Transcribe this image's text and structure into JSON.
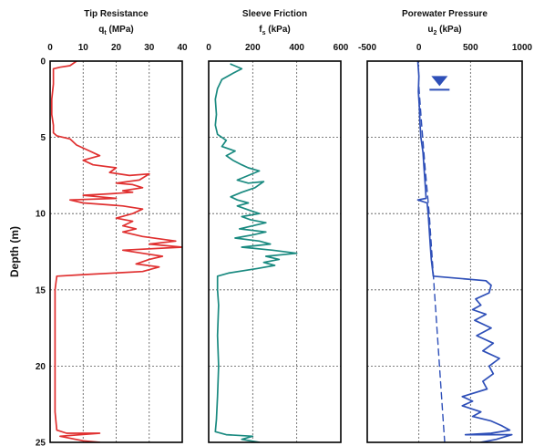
{
  "chart_data": {
    "type": "line",
    "y_axis": {
      "label": "Depth (m)",
      "range": [
        0,
        25
      ],
      "ticks": [
        0,
        5,
        10,
        15,
        20,
        25
      ],
      "inverted": true
    },
    "grid": true,
    "panels": [
      {
        "title": "Tip Resistance",
        "subtitle_main": "q",
        "subtitle_sub": "t",
        "subtitle_unit": " (MPa)",
        "xlim": [
          0,
          40
        ],
        "x_ticks": [
          0,
          10,
          20,
          30,
          40
        ],
        "color": "#e03030",
        "series": [
          {
            "points": [
              [
                8,
                0
              ],
              [
                6,
                0.3
              ],
              [
                3,
                0.4
              ],
              [
                1,
                0.5
              ],
              [
                1,
                1.5
              ],
              [
                0.5,
                2.5
              ],
              [
                0.5,
                3.5
              ],
              [
                1,
                4.2
              ],
              [
                1,
                4.7
              ],
              [
                2,
                4.9
              ],
              [
                6,
                5.1
              ],
              [
                8,
                5.5
              ],
              [
                12,
                5.9
              ],
              [
                15,
                6.2
              ],
              [
                10,
                6.5
              ],
              [
                13,
                6.8
              ],
              [
                20,
                7.0
              ],
              [
                18,
                7.3
              ],
              [
                24,
                7.5
              ],
              [
                30,
                7.4
              ],
              [
                27,
                7.8
              ],
              [
                20,
                8.0
              ],
              [
                25,
                8.1
              ],
              [
                28,
                8.3
              ],
              [
                22,
                8.5
              ],
              [
                25,
                8.6
              ],
              [
                18,
                8.7
              ],
              [
                10,
                8.8
              ],
              [
                15,
                8.9
              ],
              [
                20,
                9.0
              ],
              [
                6,
                9.1
              ],
              [
                10,
                9.3
              ],
              [
                22,
                9.5
              ],
              [
                28,
                9.7
              ],
              [
                25,
                10.0
              ],
              [
                20,
                10.3
              ],
              [
                25,
                10.5
              ],
              [
                22,
                10.8
              ],
              [
                26,
                11.0
              ],
              [
                22,
                11.2
              ],
              [
                28,
                11.5
              ],
              [
                38,
                11.8
              ],
              [
                30,
                12.0
              ],
              [
                40,
                12.2
              ],
              [
                22,
                12.4
              ],
              [
                28,
                12.6
              ],
              [
                34,
                12.8
              ],
              [
                30,
                13.0
              ],
              [
                26,
                13.3
              ],
              [
                33,
                13.5
              ],
              [
                28,
                13.8
              ],
              [
                10,
                14.0
              ],
              [
                2,
                14.1
              ],
              [
                1.5,
                15
              ],
              [
                1.5,
                17
              ],
              [
                1.5,
                19
              ],
              [
                1.5,
                21
              ],
              [
                1.5,
                23
              ],
              [
                2,
                24.2
              ],
              [
                5,
                24.4
              ],
              [
                15,
                24.4
              ],
              [
                3,
                24.6
              ],
              [
                10,
                24.9
              ],
              [
                15,
                25.0
              ]
            ]
          }
        ]
      },
      {
        "title": "Sleeve Friction",
        "subtitle_main": "f",
        "subtitle_sub": "s",
        "subtitle_unit": " (kPa)",
        "xlim": [
          0,
          600
        ],
        "x_ticks": [
          0,
          200,
          400,
          600
        ],
        "color": "#1a8a80",
        "series": [
          {
            "points": [
              [
                100,
                0.2
              ],
              [
                150,
                0.5
              ],
              [
                110,
                0.8
              ],
              [
                60,
                1.2
              ],
              [
                40,
                1.8
              ],
              [
                30,
                2.5
              ],
              [
                35,
                3.5
              ],
              [
                30,
                4.2
              ],
              [
                40,
                4.8
              ],
              [
                80,
                5.2
              ],
              [
                60,
                5.6
              ],
              [
                120,
                5.9
              ],
              [
                80,
                6.2
              ],
              [
                110,
                6.5
              ],
              [
                150,
                6.8
              ],
              [
                180,
                7.0
              ],
              [
                230,
                7.2
              ],
              [
                180,
                7.5
              ],
              [
                130,
                7.8
              ],
              [
                180,
                8.0
              ],
              [
                250,
                7.9
              ],
              [
                210,
                8.3
              ],
              [
                150,
                8.6
              ],
              [
                100,
                8.9
              ],
              [
                130,
                9.1
              ],
              [
                180,
                9.3
              ],
              [
                130,
                9.5
              ],
              [
                190,
                9.8
              ],
              [
                230,
                10.0
              ],
              [
                150,
                10.2
              ],
              [
                190,
                10.4
              ],
              [
                260,
                10.6
              ],
              [
                200,
                10.8
              ],
              [
                140,
                11.0
              ],
              [
                260,
                11.2
              ],
              [
                200,
                11.4
              ],
              [
                120,
                11.6
              ],
              [
                230,
                11.8
              ],
              [
                280,
                12.0
              ],
              [
                150,
                12.2
              ],
              [
                290,
                12.4
              ],
              [
                400,
                12.6
              ],
              [
                260,
                12.8
              ],
              [
                320,
                13.0
              ],
              [
                250,
                13.2
              ],
              [
                300,
                13.4
              ],
              [
                220,
                13.6
              ],
              [
                90,
                13.9
              ],
              [
                40,
                14.1
              ],
              [
                40,
                15
              ],
              [
                45,
                16
              ],
              [
                40,
                18
              ],
              [
                45,
                20
              ],
              [
                40,
                22
              ],
              [
                35,
                23.5
              ],
              [
                30,
                24.3
              ],
              [
                80,
                24.5
              ],
              [
                200,
                24.6
              ],
              [
                150,
                24.8
              ],
              [
                230,
                25.0
              ]
            ]
          }
        ]
      },
      {
        "title": "Porewater Pressure",
        "subtitle_main": "u",
        "subtitle_sub": "2",
        "subtitle_unit": " (kPa)",
        "xlim": [
          -500,
          1000
        ],
        "x_ticks": [
          -500,
          0,
          500,
          1000
        ],
        "color": "#2e4fb8",
        "water_table_marker": {
          "x": 200,
          "depth": 1.7
        },
        "series": [
          {
            "name": "",
            "points": [
              [
                -10,
                0
              ],
              [
                0,
                1
              ],
              [
                -5,
                2
              ],
              [
                5,
                3
              ],
              [
                10,
                4
              ],
              [
                20,
                5
              ],
              [
                40,
                6
              ],
              [
                50,
                7
              ],
              [
                60,
                8
              ],
              [
                70,
                9
              ],
              [
                -10,
                9.1
              ],
              [
                80,
                9.3
              ],
              [
                90,
                10
              ],
              [
                100,
                11
              ],
              [
                110,
                12
              ],
              [
                120,
                13
              ],
              [
                140,
                14.1
              ],
              [
                650,
                14.4
              ],
              [
                700,
                14.7
              ],
              [
                680,
                15.2
              ],
              [
                550,
                15.6
              ],
              [
                600,
                16.0
              ],
              [
                520,
                16.3
              ],
              [
                650,
                16.6
              ],
              [
                540,
                17.0
              ],
              [
                700,
                17.5
              ],
              [
                560,
                18.0
              ],
              [
                720,
                18.5
              ],
              [
                620,
                19.0
              ],
              [
                780,
                19.5
              ],
              [
                680,
                20.0
              ],
              [
                720,
                20.5
              ],
              [
                620,
                21.0
              ],
              [
                660,
                21.5
              ],
              [
                420,
                22.0
              ],
              [
                520,
                22.3
              ],
              [
                420,
                22.6
              ],
              [
                600,
                23.0
              ],
              [
                520,
                23.3
              ],
              [
                700,
                23.6
              ],
              [
                800,
                23.9
              ],
              [
                880,
                24.2
              ],
              [
                700,
                24.4
              ],
              [
                450,
                24.5
              ],
              [
                900,
                24.5
              ],
              [
                750,
                24.8
              ],
              [
                600,
                25.0
              ]
            ]
          },
          {
            "name": "",
            "dashed": true,
            "points": [
              [
                0,
                1.7
              ],
              [
                25,
                4
              ],
              [
                60,
                7
              ],
              [
                100,
                10
              ],
              [
                140,
                14
              ],
              [
                170,
                17
              ],
              [
                200,
                20
              ],
              [
                230,
                23
              ],
              [
                250,
                25
              ]
            ]
          }
        ]
      }
    ]
  }
}
